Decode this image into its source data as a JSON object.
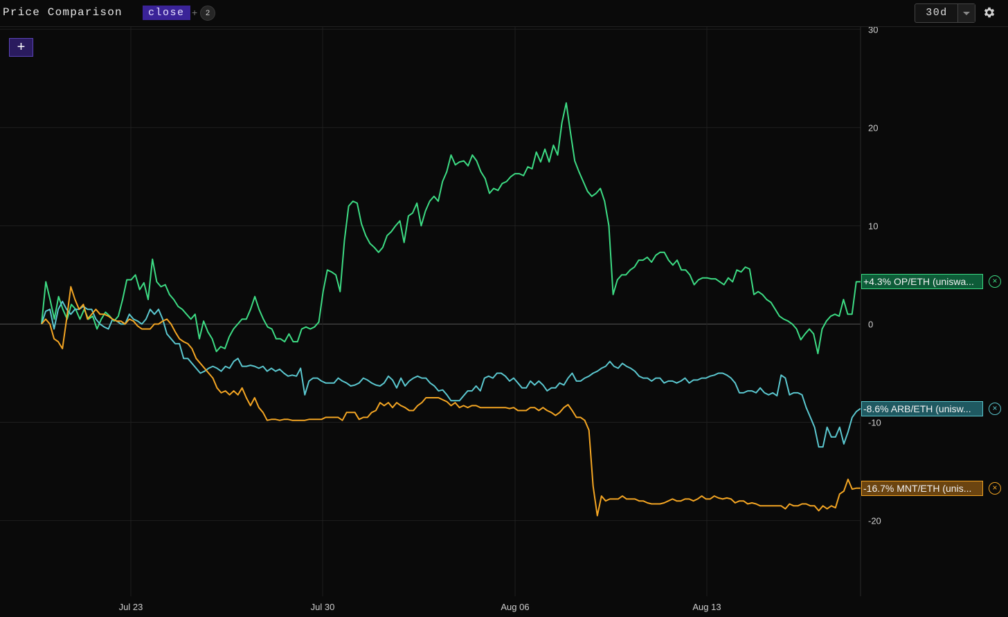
{
  "header": {
    "title": "Price Comparison",
    "metric": "close",
    "plus": "+",
    "count": "2",
    "range": "30d",
    "add_label": "+"
  },
  "icons": [
    "gear-icon",
    "close-icon",
    "chevron-down-icon"
  ],
  "chart_data": {
    "type": "line",
    "x_start": "Jul 19",
    "x_end": "Aug 20",
    "x_ticks": [
      "Jul 23",
      "Jul 30",
      "Aug 06",
      "Aug 13"
    ],
    "y_ticks": [
      30,
      20,
      10,
      0,
      -10,
      -20
    ],
    "ylim": [
      -27.7,
      30.3
    ],
    "grid": true,
    "series": [
      {
        "name": "OP/ETH (uniswa...",
        "tag": "+4.3% OP/ETH (uniswa...",
        "color": "#3ddc84",
        "tag_bg": "#0d5c38",
        "last": 4.3,
        "values": [
          0.0,
          4.3,
          2.5,
          0.5,
          2.8,
          1.5,
          0.5,
          2.0,
          1.5,
          0.5,
          1.5,
          0.5,
          0.8,
          -0.5,
          0.5,
          1.2,
          0.8,
          0.3,
          0.8,
          2.5,
          4.5,
          4.5,
          5.0,
          3.5,
          4.2,
          2.5,
          6.6,
          4.3,
          3.8,
          4.0,
          3.0,
          2.5,
          1.8,
          1.5,
          1.0,
          0.5,
          1.0,
          -1.5,
          0.3,
          -0.8,
          -1.5,
          -2.8,
          -2.3,
          -2.5,
          -1.3,
          -0.5,
          0.0,
          0.5,
          0.5,
          1.5,
          2.8,
          1.5,
          0.5,
          -0.3,
          -0.5,
          -1.5,
          -1.5,
          -1.8,
          -1.0,
          -1.8,
          -1.8,
          -0.5,
          -0.3,
          -0.5,
          -0.3,
          0.2,
          3.3,
          5.5,
          5.3,
          5.0,
          3.3,
          8.5,
          12.0,
          12.5,
          12.3,
          10.2,
          9.0,
          8.2,
          7.8,
          7.3,
          7.8,
          9.0,
          9.4,
          10.0,
          10.5,
          8.3,
          11.0,
          11.3,
          12.3,
          10.0,
          11.5,
          12.5,
          13.0,
          12.5,
          14.5,
          15.5,
          17.2,
          16.2,
          16.5,
          16.6,
          16.1,
          17.2,
          16.6,
          15.5,
          14.8,
          13.3,
          13.8,
          13.6,
          14.3,
          14.5,
          15.0,
          15.3,
          15.3,
          15.1,
          16.0,
          15.8,
          17.5,
          16.5,
          17.8,
          16.5,
          18.2,
          17.2,
          20.5,
          22.5,
          19.5,
          16.6,
          15.5,
          14.5,
          13.5,
          13.0,
          13.3,
          13.8,
          12.5,
          10.0,
          3.0,
          4.5,
          5.0,
          5.0,
          5.5,
          5.8,
          6.5,
          6.5,
          6.8,
          6.3,
          7.0,
          7.3,
          7.3,
          6.5,
          6.0,
          6.5,
          5.5,
          5.5,
          5.0,
          4.0,
          4.5,
          4.7,
          4.7,
          4.6,
          4.6,
          4.3,
          4.0,
          4.7,
          4.3,
          5.5,
          5.3,
          5.8,
          5.6,
          3.0,
          3.3,
          3.0,
          2.5,
          2.2,
          1.5,
          0.8,
          0.5,
          0.3,
          0.0,
          -0.5,
          -1.6,
          -1.0,
          -0.5,
          -1.0,
          -3.0,
          -0.5,
          0.3,
          0.8,
          1.0,
          0.8,
          2.5,
          1.0,
          1.0,
          4.3,
          4.3
        ]
      },
      {
        "name": "ARB/ETH (uniswa...",
        "tag": "-8.6% ARB/ETH (unisw...",
        "color": "#5bc8d0",
        "tag_bg": "#1f5961",
        "last": -8.6,
        "values": [
          0.0,
          1.3,
          1.5,
          -0.5,
          1.5,
          2.3,
          1.5,
          1.0,
          1.5,
          1.5,
          1.8,
          1.5,
          1.5,
          0.5,
          0.0,
          -0.3,
          -0.5,
          0.5,
          0.3,
          0.0,
          0.0,
          1.0,
          0.5,
          0.3,
          0.0,
          0.5,
          1.5,
          1.0,
          1.5,
          0.5,
          -1.0,
          -1.5,
          -2.0,
          -2.0,
          -3.5,
          -3.5,
          -4.0,
          -4.5,
          -5.0,
          -4.8,
          -4.5,
          -4.3,
          -4.5,
          -4.8,
          -4.3,
          -4.5,
          -3.8,
          -3.5,
          -4.3,
          -4.3,
          -4.2,
          -4.3,
          -4.5,
          -4.3,
          -4.8,
          -4.5,
          -4.8,
          -4.6,
          -5.0,
          -5.3,
          -5.2,
          -5.3,
          -4.5,
          -7.2,
          -5.8,
          -5.5,
          -5.5,
          -5.8,
          -6.0,
          -6.0,
          -6.0,
          -5.5,
          -5.8,
          -6.0,
          -6.3,
          -6.2,
          -6.0,
          -5.5,
          -5.7,
          -6.0,
          -6.2,
          -6.3,
          -6.0,
          -5.3,
          -5.7,
          -6.5,
          -5.5,
          -6.3,
          -5.8,
          -5.5,
          -5.3,
          -5.5,
          -5.5,
          -6.0,
          -6.3,
          -6.8,
          -6.7,
          -7.2,
          -7.8,
          -7.8,
          -7.8,
          -7.3,
          -6.8,
          -6.8,
          -6.3,
          -6.8,
          -5.5,
          -5.3,
          -5.5,
          -5.0,
          -5.0,
          -5.3,
          -5.8,
          -5.5,
          -6.0,
          -6.5,
          -6.5,
          -5.8,
          -6.2,
          -5.8,
          -6.2,
          -6.8,
          -6.5,
          -6.5,
          -6.0,
          -6.2,
          -5.5,
          -5.0,
          -5.8,
          -5.8,
          -5.5,
          -5.3,
          -5.0,
          -4.8,
          -4.5,
          -4.3,
          -3.8,
          -4.3,
          -4.5,
          -4.0,
          -4.3,
          -4.5,
          -4.8,
          -5.3,
          -5.5,
          -5.5,
          -5.8,
          -5.5,
          -5.5,
          -6.0,
          -5.8,
          -5.8,
          -6.0,
          -5.8,
          -5.5,
          -6.0,
          -5.7,
          -5.7,
          -5.5,
          -5.5,
          -5.3,
          -5.2,
          -5.0,
          -5.0,
          -5.2,
          -5.5,
          -6.0,
          -7.0,
          -7.0,
          -6.8,
          -6.8,
          -7.0,
          -6.5,
          -7.0,
          -7.2,
          -7.0,
          -7.3,
          -5.2,
          -5.5,
          -7.2,
          -7.0,
          -7.0,
          -7.2,
          -8.5,
          -9.5,
          -10.5,
          -12.5,
          -12.5,
          -10.5,
          -11.5,
          -11.5,
          -10.5,
          -12.2,
          -11.0,
          -9.5,
          -8.9,
          -8.6
        ]
      },
      {
        "name": "MNT/ETH (unis...",
        "tag": "-16.7% MNT/ETH (unis...",
        "color": "#f5a623",
        "tag_bg": "#6b4410",
        "last": -16.7,
        "values": [
          0.0,
          0.5,
          0.0,
          -1.5,
          -1.8,
          -2.5,
          0.5,
          3.8,
          2.5,
          1.5,
          2.0,
          0.5,
          1.0,
          1.5,
          1.0,
          1.0,
          0.8,
          0.5,
          0.3,
          0.3,
          0.0,
          0.5,
          0.3,
          -0.2,
          -0.5,
          -0.5,
          -0.5,
          0.0,
          0.0,
          0.3,
          0.5,
          0.0,
          -0.8,
          -1.5,
          -1.8,
          -2.0,
          -2.5,
          -3.5,
          -4.0,
          -4.5,
          -5.0,
          -5.5,
          -6.5,
          -7.0,
          -6.8,
          -7.2,
          -6.8,
          -7.2,
          -6.5,
          -7.5,
          -8.3,
          -7.5,
          -8.5,
          -9.0,
          -9.8,
          -9.7,
          -9.7,
          -9.8,
          -9.7,
          -9.7,
          -9.8,
          -9.8,
          -9.8,
          -9.8,
          -9.7,
          -9.7,
          -9.7,
          -9.7,
          -9.5,
          -9.5,
          -9.5,
          -9.5,
          -9.8,
          -9.0,
          -9.0,
          -9.0,
          -9.7,
          -9.5,
          -9.5,
          -9.0,
          -8.8,
          -8.0,
          -8.3,
          -8.0,
          -8.5,
          -8.0,
          -8.3,
          -8.5,
          -8.8,
          -8.8,
          -8.3,
          -8.0,
          -7.5,
          -7.5,
          -7.5,
          -7.5,
          -7.7,
          -7.9,
          -8.3,
          -8.0,
          -8.5,
          -8.3,
          -8.5,
          -8.3,
          -8.3,
          -8.5,
          -8.5,
          -8.5,
          -8.5,
          -8.5,
          -8.5,
          -8.5,
          -8.6,
          -8.5,
          -8.8,
          -8.8,
          -8.8,
          -8.5,
          -8.5,
          -8.8,
          -8.5,
          -8.8,
          -9.0,
          -9.3,
          -9.0,
          -8.5,
          -8.2,
          -8.8,
          -9.5,
          -9.5,
          -9.8,
          -10.8,
          -16.5,
          -19.5,
          -17.5,
          -18.0,
          -17.8,
          -17.8,
          -17.8,
          -17.5,
          -17.8,
          -17.8,
          -17.8,
          -18.0,
          -18.0,
          -18.2,
          -18.3,
          -18.3,
          -18.3,
          -18.2,
          -18.0,
          -17.8,
          -18.0,
          -18.0,
          -17.8,
          -17.8,
          -18.0,
          -17.8,
          -17.5,
          -17.8,
          -17.8,
          -17.5,
          -17.7,
          -17.8,
          -17.7,
          -17.8,
          -18.2,
          -18.0,
          -18.0,
          -18.3,
          -18.2,
          -18.3,
          -18.5,
          -18.5,
          -18.5,
          -18.5,
          -18.5,
          -18.5,
          -18.8,
          -18.3,
          -18.5,
          -18.5,
          -18.3,
          -18.3,
          -18.5,
          -18.5,
          -19.0,
          -18.5,
          -18.8,
          -18.5,
          -18.7,
          -17.3,
          -17.0,
          -15.8,
          -16.8,
          -16.7,
          -16.7
        ]
      }
    ]
  }
}
